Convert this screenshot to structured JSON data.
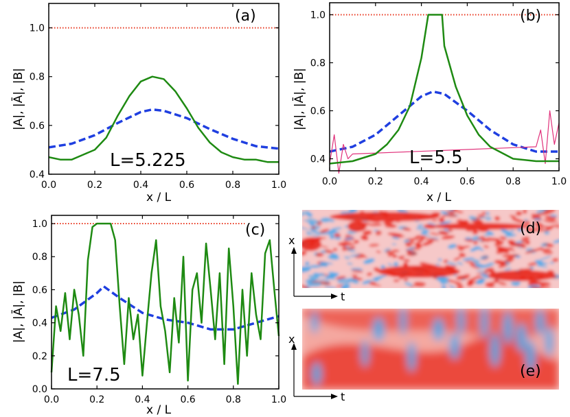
{
  "chart_data": [
    {
      "id": "a",
      "type": "line",
      "panel_label": "(a)",
      "annotation": "L=5.225",
      "xlabel": "x / L",
      "ylabel": "|A|, |Ā|, |B|",
      "xlim": [
        0,
        1
      ],
      "ylim": [
        0.4,
        1.1
      ],
      "x_ticks": [
        "0.0",
        "0.2",
        "0.4",
        "0.6",
        "0.8",
        "1.0"
      ],
      "y_ticks": [
        "0.4",
        "0.6",
        "0.8",
        "1.0"
      ],
      "x_tick_values": [
        0,
        0.2,
        0.4,
        0.6,
        0.8,
        1.0
      ],
      "y_tick_values": [
        0.4,
        0.6,
        0.8,
        1.0
      ],
      "series": [
        {
          "name": "|B|",
          "color": "#e8341c",
          "style": "dotted",
          "x": [
            0,
            0.25,
            0.5,
            0.75,
            1.0
          ],
          "y": [
            1.0,
            1.0,
            1.0,
            1.0,
            1.0
          ]
        },
        {
          "name": "|Ā|",
          "color": "#1f3fe0",
          "style": "dashed",
          "x": [
            0,
            0.1,
            0.2,
            0.3,
            0.4,
            0.45,
            0.5,
            0.6,
            0.7,
            0.8,
            0.9,
            1.0
          ],
          "y": [
            0.51,
            0.525,
            0.56,
            0.61,
            0.655,
            0.665,
            0.66,
            0.63,
            0.585,
            0.545,
            0.515,
            0.505
          ]
        },
        {
          "name": "|A|",
          "color": "#1e8a12",
          "style": "solid",
          "x": [
            0,
            0.05,
            0.1,
            0.15,
            0.2,
            0.25,
            0.3,
            0.35,
            0.4,
            0.45,
            0.5,
            0.55,
            0.6,
            0.65,
            0.7,
            0.75,
            0.8,
            0.85,
            0.9,
            0.95,
            1.0
          ],
          "y": [
            0.47,
            0.46,
            0.46,
            0.48,
            0.5,
            0.55,
            0.64,
            0.72,
            0.78,
            0.8,
            0.79,
            0.74,
            0.67,
            0.59,
            0.53,
            0.49,
            0.47,
            0.46,
            0.46,
            0.45,
            0.45
          ]
        }
      ]
    },
    {
      "id": "b",
      "type": "line",
      "panel_label": "(b)",
      "annotation": "L=5.5",
      "xlabel": "x / L",
      "ylabel": "|A|, |Ā|, |B|",
      "xlim": [
        0,
        1
      ],
      "ylim": [
        0.35,
        1.05
      ],
      "x_ticks": [
        "0.0",
        "0.2",
        "0.4",
        "0.6",
        "0.8",
        "1.0"
      ],
      "y_ticks": [
        "0.4",
        "0.6",
        "0.8",
        "1.0"
      ],
      "x_tick_values": [
        0,
        0.2,
        0.4,
        0.6,
        0.8,
        1.0
      ],
      "y_tick_values": [
        0.4,
        0.6,
        0.8,
        1.0
      ],
      "series": [
        {
          "name": "|B|",
          "color": "#e8341c",
          "style": "dotted",
          "x": [
            0,
            0.25,
            0.5,
            0.75,
            1.0
          ],
          "y": [
            1.0,
            1.0,
            1.0,
            1.0,
            1.0
          ]
        },
        {
          "name": "|Ā|",
          "color": "#1f3fe0",
          "style": "dashed",
          "x": [
            0,
            0.1,
            0.2,
            0.3,
            0.4,
            0.45,
            0.5,
            0.6,
            0.7,
            0.8,
            0.9,
            1.0
          ],
          "y": [
            0.43,
            0.45,
            0.5,
            0.58,
            0.66,
            0.68,
            0.67,
            0.6,
            0.52,
            0.46,
            0.43,
            0.43
          ]
        },
        {
          "name": "|A| (magenta)",
          "color": "#e0307a",
          "style": "solid-thin",
          "x": [
            0,
            0.02,
            0.04,
            0.06,
            0.08,
            0.1,
            0.9,
            0.92,
            0.94,
            0.96,
            0.98,
            1.0
          ],
          "y": [
            0.38,
            0.5,
            0.34,
            0.46,
            0.4,
            0.42,
            0.45,
            0.52,
            0.38,
            0.6,
            0.46,
            0.55
          ]
        },
        {
          "name": "|A|",
          "color": "#1e8a12",
          "style": "solid",
          "x": [
            0,
            0.1,
            0.2,
            0.25,
            0.3,
            0.35,
            0.4,
            0.43,
            0.45,
            0.49,
            0.5,
            0.55,
            0.6,
            0.65,
            0.7,
            0.8,
            0.9,
            1.0
          ],
          "y": [
            0.38,
            0.39,
            0.42,
            0.46,
            0.52,
            0.62,
            0.82,
            1.0,
            1.0,
            1.0,
            0.87,
            0.7,
            0.58,
            0.5,
            0.45,
            0.4,
            0.39,
            0.39
          ]
        }
      ]
    },
    {
      "id": "c",
      "type": "line",
      "panel_label": "(c)",
      "annotation": "L=7.5",
      "xlabel": "x / L",
      "ylabel": "|A|, |Ā|, |B|",
      "xlim": [
        0,
        1
      ],
      "ylim": [
        0,
        1.05
      ],
      "x_ticks": [
        "0.0",
        "0.2",
        "0.4",
        "0.6",
        "0.8",
        "1.0"
      ],
      "y_ticks": [
        "0.0",
        "0.2",
        "0.4",
        "0.6",
        "0.8",
        "1.0"
      ],
      "x_tick_values": [
        0,
        0.2,
        0.4,
        0.6,
        0.8,
        1.0
      ],
      "y_tick_values": [
        0,
        0.2,
        0.4,
        0.6,
        0.8,
        1.0
      ],
      "series": [
        {
          "name": "|B|",
          "color": "#e8341c",
          "style": "dotted",
          "x": [
            0,
            0.25,
            0.5,
            0.75,
            0.85
          ],
          "y": [
            1.0,
            1.0,
            1.0,
            1.0,
            1.0
          ]
        },
        {
          "name": "|Ā|",
          "color": "#1f3fe0",
          "style": "dashed",
          "x": [
            0,
            0.1,
            0.2,
            0.23,
            0.3,
            0.4,
            0.5,
            0.6,
            0.7,
            0.8,
            0.9,
            1.0
          ],
          "y": [
            0.43,
            0.48,
            0.58,
            0.62,
            0.55,
            0.46,
            0.42,
            0.4,
            0.36,
            0.36,
            0.4,
            0.44
          ]
        },
        {
          "name": "|A|",
          "color": "#1e8a12",
          "style": "solid",
          "x": [
            0,
            0.02,
            0.04,
            0.06,
            0.08,
            0.1,
            0.12,
            0.14,
            0.16,
            0.18,
            0.2,
            0.26,
            0.28,
            0.3,
            0.32,
            0.34,
            0.36,
            0.38,
            0.4,
            0.42,
            0.44,
            0.46,
            0.48,
            0.5,
            0.52,
            0.54,
            0.56,
            0.58,
            0.6,
            0.62,
            0.64,
            0.66,
            0.68,
            0.7,
            0.72,
            0.74,
            0.76,
            0.78,
            0.8,
            0.82,
            0.84,
            0.86,
            0.88,
            0.9,
            0.92,
            0.94,
            0.96,
            0.98,
            1.0
          ],
          "y": [
            0.1,
            0.5,
            0.35,
            0.58,
            0.3,
            0.6,
            0.45,
            0.2,
            0.78,
            0.98,
            1.0,
            1.0,
            0.9,
            0.5,
            0.15,
            0.55,
            0.3,
            0.45,
            0.08,
            0.4,
            0.7,
            0.9,
            0.5,
            0.35,
            0.1,
            0.55,
            0.28,
            0.8,
            0.05,
            0.6,
            0.7,
            0.4,
            0.88,
            0.6,
            0.3,
            0.7,
            0.15,
            0.85,
            0.5,
            0.03,
            0.6,
            0.2,
            0.7,
            0.45,
            0.3,
            0.82,
            0.9,
            0.6,
            0.32
          ]
        }
      ]
    }
  ],
  "heatmaps": [
    {
      "id": "d",
      "panel_label": "(d)",
      "x_axis_label": "t",
      "y_axis_label": "x"
    },
    {
      "id": "e",
      "panel_label": "(e)",
      "x_axis_label": "t",
      "y_axis_label": "x"
    }
  ],
  "colors": {
    "hot": "#e8281c",
    "cold": "#4aa8e8",
    "neutral": "#ffffff"
  }
}
